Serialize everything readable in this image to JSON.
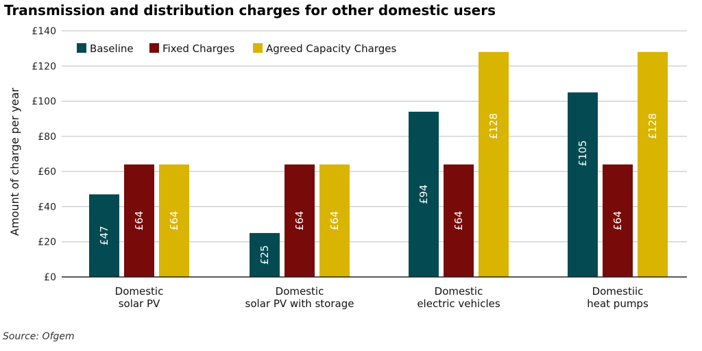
{
  "title": "Transmission and distribution charges for other domestic users",
  "source": "Source: Ofgem",
  "chart_data": {
    "type": "bar",
    "title": "Transmission and distribution charges for other domestic users",
    "xlabel": "",
    "ylabel": "Amount of charge per year",
    "ylim": [
      0,
      140
    ],
    "y_ticks": [
      "£0",
      "£20",
      "£40",
      "£60",
      "£80",
      "£100",
      "£120",
      "£140"
    ],
    "y_tick_values": [
      0,
      20,
      40,
      60,
      80,
      100,
      120,
      140
    ],
    "categories": [
      [
        "Domestic",
        "solar PV"
      ],
      [
        "Domestic",
        "solar PV with storage"
      ],
      [
        "Domestic",
        "electric vehicles"
      ],
      [
        "Domestiic",
        "heat pumps"
      ]
    ],
    "grid": true,
    "legend_position": "top-left",
    "series": [
      {
        "name": "Baseline",
        "color": "#034a52",
        "values": [
          47,
          25,
          94,
          105
        ],
        "labels": [
          "£47",
          "£25",
          "£94",
          "£105"
        ]
      },
      {
        "name": "Fixed Charges",
        "color": "#780a0a",
        "values": [
          64,
          64,
          64,
          64
        ],
        "labels": [
          "£64",
          "£64",
          "£64",
          "£64"
        ]
      },
      {
        "name": "Agreed Capacity Charges",
        "color": "#d9b400",
        "values": [
          64,
          64,
          128,
          128
        ],
        "labels": [
          "£64",
          "£64",
          "£128",
          "£128"
        ]
      }
    ]
  }
}
